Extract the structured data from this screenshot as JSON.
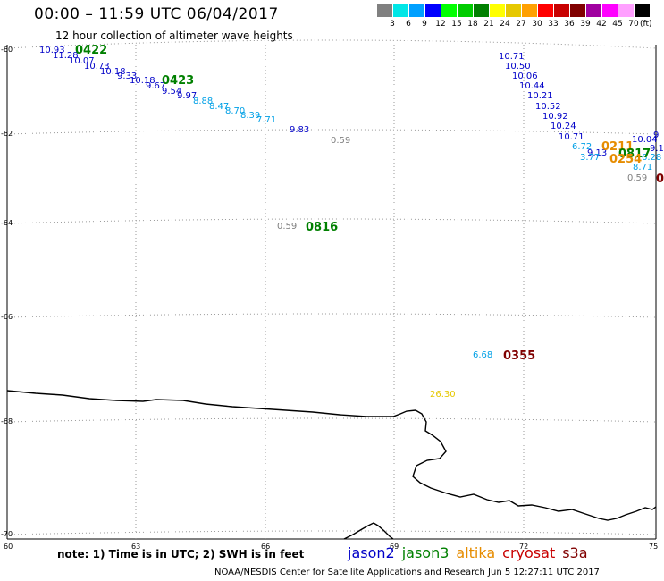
{
  "header": {
    "title": "00:00 – 11:59 UTC 06/04/2017",
    "subtitle": "12 hour collection of altimeter wave heights"
  },
  "color_scale": {
    "unit": "(ft)",
    "bins": [
      {
        "label": "3",
        "color": "#808080"
      },
      {
        "label": "6",
        "color": "#00e6e6"
      },
      {
        "label": "9",
        "color": "#00a0ff"
      },
      {
        "label": "12",
        "color": "#0000ff"
      },
      {
        "label": "15",
        "color": "#00ff00"
      },
      {
        "label": "18",
        "color": "#00cc00"
      },
      {
        "label": "21",
        "color": "#008000"
      },
      {
        "label": "24",
        "color": "#ffff00"
      },
      {
        "label": "27",
        "color": "#e6c800"
      },
      {
        "label": "30",
        "color": "#ffa000"
      },
      {
        "label": "33",
        "color": "#ff0000"
      },
      {
        "label": "36",
        "color": "#c80000"
      },
      {
        "label": "39",
        "color": "#800000"
      },
      {
        "label": "42",
        "color": "#a000a0"
      },
      {
        "label": "45",
        "color": "#ff00ff"
      },
      {
        "label": "70",
        "color": "#ffa0ff"
      },
      {
        "label": "",
        "color": "#000000"
      }
    ]
  },
  "axes": {
    "lat_labels": [
      "-60",
      "-62",
      "-64",
      "-66",
      "-68",
      "-70"
    ],
    "lon_labels": [
      "60",
      "63",
      "66",
      "69",
      "72",
      "75"
    ]
  },
  "observations": [
    {
      "v": "10.93",
      "c": "#0000c8"
    },
    {
      "v": "11.28",
      "c": "#0000c8"
    },
    {
      "v": "10.07",
      "c": "#0000c8"
    },
    {
      "v": "10.73",
      "c": "#0000c8"
    },
    {
      "v": "10.18",
      "c": "#0000c8"
    },
    {
      "v": "9.33",
      "c": "#0000c8"
    },
    {
      "v": "10.18",
      "c": "#0000c8"
    },
    {
      "v": "9.67",
      "c": "#0000c8"
    },
    {
      "v": "9.54",
      "c": "#0000c8"
    },
    {
      "v": "9.97",
      "c": "#0000c8"
    },
    {
      "v": "8.88",
      "c": "#00a0e6"
    },
    {
      "v": "8.47",
      "c": "#00a0e6"
    },
    {
      "v": "8.70",
      "c": "#00a0e6"
    },
    {
      "v": "8.39",
      "c": "#00a0e6"
    },
    {
      "v": "7.71",
      "c": "#00a0e6"
    },
    {
      "v": "9.83",
      "c": "#0000c8"
    },
    {
      "v": "0.59",
      "c": "#808080"
    },
    {
      "v": "0.59",
      "c": "#808080"
    },
    {
      "v": "10.71",
      "c": "#0000c8"
    },
    {
      "v": "10.50",
      "c": "#0000c8"
    },
    {
      "v": "10.06",
      "c": "#0000c8"
    },
    {
      "v": "10.44",
      "c": "#0000c8"
    },
    {
      "v": "10.21",
      "c": "#0000c8"
    },
    {
      "v": "10.52",
      "c": "#0000c8"
    },
    {
      "v": "10.92",
      "c": "#0000c8"
    },
    {
      "v": "10.24",
      "c": "#0000c8"
    },
    {
      "v": "10.71",
      "c": "#0000c8"
    },
    {
      "v": "6.72",
      "c": "#00a0e6"
    },
    {
      "v": "9.13",
      "c": "#0000c8"
    },
    {
      "v": "3.77",
      "c": "#00a0e6"
    },
    {
      "v": "10.04",
      "c": "#0000c8"
    },
    {
      "v": "9.1",
      "c": "#0000c8"
    },
    {
      "v": "9",
      "c": "#0000c8"
    },
    {
      "v": "6.28",
      "c": "#00a0e6"
    },
    {
      "v": "8.71",
      "c": "#00a0e6"
    },
    {
      "v": "0.59",
      "c": "#808080"
    },
    {
      "v": "6.68",
      "c": "#00a0e6"
    },
    {
      "v": "26.30",
      "c": "#e6c800"
    }
  ],
  "passes": [
    {
      "v": "0422",
      "c": "#008000"
    },
    {
      "v": "0423",
      "c": "#008000"
    },
    {
      "v": "0816",
      "c": "#008000"
    },
    {
      "v": "0355",
      "c": "#800000"
    },
    {
      "v": "0211",
      "c": "#e68c00"
    },
    {
      "v": "0817",
      "c": "#008000"
    },
    {
      "v": "0254",
      "c": "#e68c00"
    },
    {
      "v": "0",
      "c": "#800000"
    }
  ],
  "note": "note: 1) Time is in UTC; 2) SWH is in feet",
  "legend": [
    {
      "name": "jason2",
      "color": "#0000c8"
    },
    {
      "name": "jason3",
      "color": "#008000"
    },
    {
      "name": "altika",
      "color": "#e68c00"
    },
    {
      "name": "cryosat",
      "color": "#c80000"
    },
    {
      "name": "s3a",
      "color": "#800000"
    }
  ],
  "footer": "NOAA/NESDIS Center for Satellite Applications and Research   Jun  5 12:27:11 UTC 2017"
}
